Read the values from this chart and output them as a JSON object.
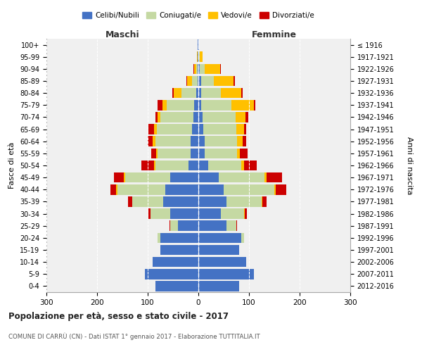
{
  "age_groups": [
    "0-4",
    "5-9",
    "10-14",
    "15-19",
    "20-24",
    "25-29",
    "30-34",
    "35-39",
    "40-44",
    "45-49",
    "50-54",
    "55-59",
    "60-64",
    "65-69",
    "70-74",
    "75-79",
    "80-84",
    "85-89",
    "90-94",
    "95-99",
    "100+"
  ],
  "birth_years": [
    "2012-2016",
    "2007-2011",
    "2002-2006",
    "1997-2001",
    "1992-1996",
    "1987-1991",
    "1982-1986",
    "1977-1981",
    "1972-1976",
    "1967-1971",
    "1962-1966",
    "1957-1961",
    "1952-1956",
    "1947-1951",
    "1942-1946",
    "1937-1941",
    "1932-1936",
    "1927-1931",
    "1922-1926",
    "1917-1921",
    "≤ 1916"
  ],
  "colors": {
    "celibi": "#4472c4",
    "coniugati": "#c5d9a3",
    "vedovi": "#ffc000",
    "divorziati": "#cc0000"
  },
  "maschi": {
    "celibi": [
      85,
      105,
      90,
      75,
      75,
      40,
      55,
      70,
      65,
      55,
      20,
      15,
      15,
      12,
      10,
      8,
      4,
      2,
      1,
      1,
      1
    ],
    "coniugati": [
      0,
      0,
      0,
      0,
      5,
      15,
      40,
      60,
      95,
      90,
      65,
      65,
      70,
      70,
      65,
      55,
      30,
      10,
      3,
      1,
      0
    ],
    "vedovi": [
      0,
      0,
      0,
      0,
      0,
      0,
      0,
      1,
      2,
      2,
      2,
      3,
      5,
      5,
      5,
      8,
      15,
      10,
      5,
      1,
      0
    ],
    "divorziati": [
      0,
      0,
      0,
      0,
      0,
      2,
      4,
      8,
      12,
      20,
      25,
      10,
      10,
      12,
      5,
      10,
      2,
      1,
      1,
      0,
      0
    ]
  },
  "femmine": {
    "celibi": [
      80,
      110,
      95,
      80,
      85,
      55,
      45,
      55,
      50,
      40,
      20,
      12,
      12,
      10,
      8,
      5,
      5,
      5,
      3,
      1,
      1
    ],
    "coniugati": [
      0,
      0,
      0,
      0,
      5,
      20,
      45,
      70,
      100,
      90,
      65,
      65,
      65,
      65,
      65,
      60,
      40,
      25,
      10,
      2,
      0
    ],
    "vedovi": [
      0,
      0,
      0,
      0,
      0,
      0,
      1,
      2,
      3,
      5,
      5,
      5,
      10,
      15,
      20,
      45,
      40,
      40,
      30,
      5,
      1
    ],
    "divorziati": [
      0,
      0,
      0,
      0,
      0,
      2,
      5,
      8,
      20,
      30,
      25,
      15,
      8,
      5,
      5,
      2,
      2,
      2,
      1,
      0,
      0
    ]
  },
  "xlim": 300,
  "title": "Popolazione per età, sesso e stato civile - 2017",
  "subtitle": "COMUNE DI CARRÙ (CN) - Dati ISTAT 1° gennaio 2017 - Elaborazione TUTTITALIA.IT",
  "ylabel_left": "Fasce di età",
  "ylabel_right": "Anni di nascita",
  "maschi_label": "Maschi",
  "femmine_label": "Femmine",
  "legend_labels": [
    "Celibi/Nubili",
    "Coniugati/e",
    "Vedovi/e",
    "Divorziati/e"
  ],
  "background_color": "#f0f0f0",
  "grid_color": "#cccccc"
}
